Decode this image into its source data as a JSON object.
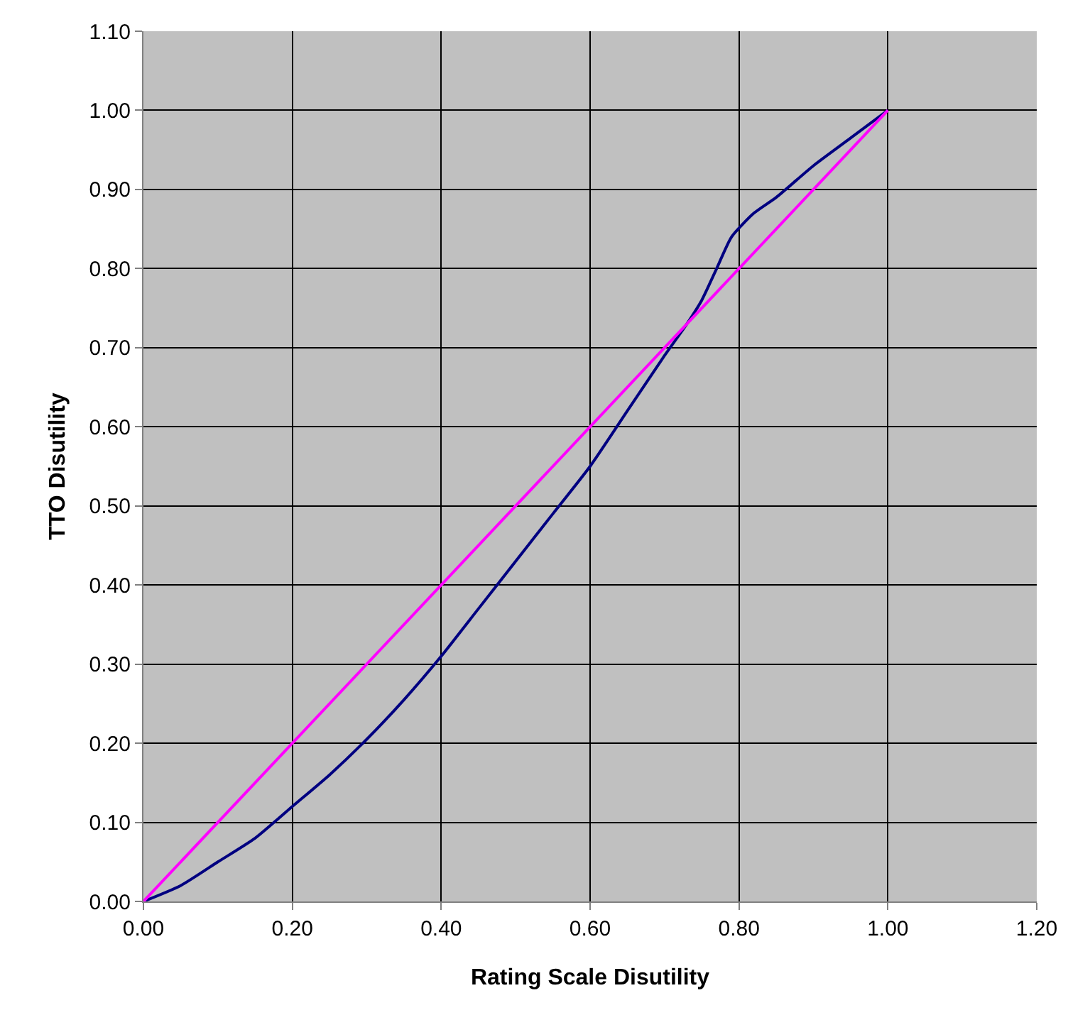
{
  "chart_data": {
    "type": "line",
    "xlabel": "Rating Scale Disutility",
    "ylabel": "TTO Disutility",
    "xlim": [
      0,
      1.2
    ],
    "xticks": [
      {
        "value": 0,
        "label": "0.00"
      },
      {
        "value": 0.2,
        "label": "0.20"
      },
      {
        "value": 0.4,
        "label": "0.40"
      },
      {
        "value": 0.6,
        "label": "0.60"
      },
      {
        "value": 0.8,
        "label": "0.80"
      },
      {
        "value": 1,
        "label": "1.00"
      },
      {
        "value": 1.2,
        "label": "1.20"
      }
    ],
    "ylim": [
      0,
      1.1
    ],
    "yticks": [
      {
        "value": 0,
        "label": "0.00"
      },
      {
        "value": 0.1,
        "label": "0.10"
      },
      {
        "value": 0.2,
        "label": "0.20"
      },
      {
        "value": 0.3,
        "label": "0.30"
      },
      {
        "value": 0.4,
        "label": "0.40"
      },
      {
        "value": 0.5,
        "label": "0.50"
      },
      {
        "value": 0.6,
        "label": "0.60"
      },
      {
        "value": 0.7,
        "label": "0.70"
      },
      {
        "value": 0.8,
        "label": "0.80"
      },
      {
        "value": 0.9,
        "label": "0.90"
      },
      {
        "value": 1,
        "label": "1.00"
      },
      {
        "value": 1.1,
        "label": "1.10"
      }
    ],
    "grid": true,
    "marker": "none",
    "line_style": "solid",
    "series": [
      {
        "color": "#000080",
        "x": [
          0,
          0.05,
          0.1,
          0.15,
          0.2,
          0.25,
          0.3,
          0.35,
          0.4,
          0.45,
          0.5,
          0.55,
          0.6,
          0.65,
          0.7,
          0.73,
          0.75,
          0.77,
          0.79,
          0.82,
          0.85,
          0.9,
          0.95,
          1
        ],
        "values": [
          0,
          0.02,
          0.05,
          0.08,
          0.12,
          0.16,
          0.205,
          0.255,
          0.31,
          0.37,
          0.43,
          0.49,
          0.55,
          0.62,
          0.69,
          0.73,
          0.76,
          0.8,
          0.84,
          0.87,
          0.89,
          0.93,
          0.965,
          1
        ]
      },
      {
        "color": "#ff00ff",
        "x": [
          0,
          1
        ],
        "values": [
          0,
          1
        ]
      }
    ]
  }
}
